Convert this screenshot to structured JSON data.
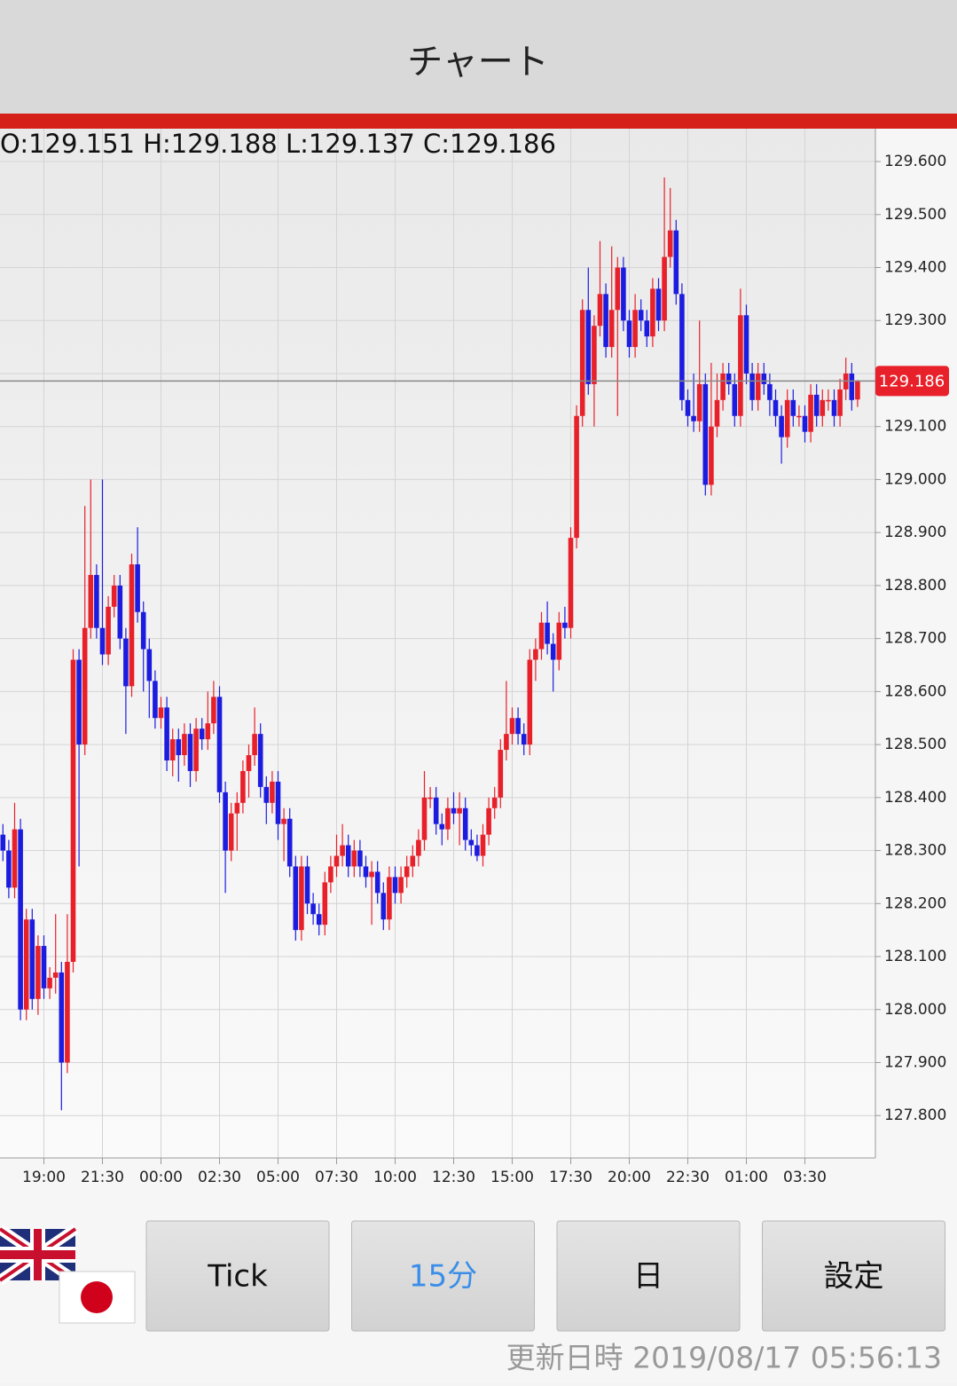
{
  "header": {
    "title": "チャート"
  },
  "chart_data": {
    "type": "candlestick",
    "ohlc_label": "O:129.151 H:129.188 L:129.137 C:129.186",
    "current_price": 129.186,
    "up_color": "#e8202a",
    "down_color": "#1c1ce0",
    "ylim": [
      127.72,
      129.657
    ],
    "yticks": [
      {
        "value": 127.8,
        "label": "127.800"
      },
      {
        "value": 127.9,
        "label": "127.900"
      },
      {
        "value": 128.0,
        "label": "128.000"
      },
      {
        "value": 128.1,
        "label": "128.100"
      },
      {
        "value": 128.2,
        "label": "128.200"
      },
      {
        "value": 128.3,
        "label": "128.300"
      },
      {
        "value": 128.4,
        "label": "128.400"
      },
      {
        "value": 128.5,
        "label": "128.500"
      },
      {
        "value": 128.6,
        "label": "128.600"
      },
      {
        "value": 128.7,
        "label": "128.700"
      },
      {
        "value": 128.8,
        "label": "128.800"
      },
      {
        "value": 128.9,
        "label": "128.900"
      },
      {
        "value": 129.0,
        "label": "129.000"
      },
      {
        "value": 129.1,
        "label": "129.100"
      },
      {
        "value": 129.2,
        "label": "129.200"
      },
      {
        "value": 129.3,
        "label": "129.300"
      },
      {
        "value": 129.4,
        "label": "129.400"
      },
      {
        "value": 129.5,
        "label": "129.500"
      },
      {
        "value": 129.6,
        "label": "129.600"
      }
    ],
    "grid": true,
    "categories": [
      null,
      null,
      null,
      null,
      null,
      null,
      null,
      "19:00",
      null,
      null,
      null,
      null,
      null,
      null,
      null,
      null,
      null,
      "21:30",
      null,
      null,
      null,
      null,
      null,
      null,
      null,
      null,
      null,
      "00:00",
      null,
      null,
      null,
      null,
      null,
      null,
      null,
      null,
      null,
      "02:30",
      null,
      null,
      null,
      null,
      null,
      null,
      null,
      null,
      null,
      "05:00",
      null,
      null,
      null,
      null,
      null,
      null,
      null,
      null,
      null,
      "07:30",
      null,
      null,
      null,
      null,
      null,
      null,
      null,
      null,
      null,
      "10:00",
      null,
      null,
      null,
      null,
      null,
      null,
      null,
      null,
      null,
      "12:30",
      null,
      null,
      null,
      null,
      null,
      null,
      null,
      null,
      null,
      "15:00",
      null,
      null,
      null,
      null,
      null,
      null,
      null,
      null,
      null,
      "17:30",
      null,
      null,
      null,
      null,
      null,
      null,
      null,
      null,
      null,
      "20:00",
      null,
      null,
      null,
      null,
      null,
      null,
      null,
      null,
      null,
      "22:30",
      null,
      null,
      null,
      null,
      null,
      null,
      null,
      null,
      null,
      "01:00",
      null,
      null,
      null,
      null,
      null,
      null,
      null,
      null,
      null,
      "03:30",
      null,
      null,
      null,
      null,
      null,
      null,
      null,
      null,
      null
    ],
    "open": [
      128.33,
      128.3,
      128.23,
      128.34,
      128.0,
      128.17,
      128.02,
      128.12,
      128.04,
      128.06,
      128.07,
      127.9,
      128.09,
      128.66,
      128.5,
      128.72,
      128.82,
      128.72,
      128.67,
      128.76,
      128.8,
      128.7,
      128.61,
      128.84,
      128.75,
      128.68,
      128.62,
      128.55,
      128.57,
      128.47,
      128.51,
      128.48,
      128.52,
      128.45,
      128.53,
      128.51,
      128.54,
      128.59,
      128.41,
      128.3,
      128.37,
      128.39,
      128.45,
      128.48,
      128.52,
      128.42,
      128.39,
      128.43,
      128.35,
      128.36,
      128.27,
      128.15,
      128.27,
      128.2,
      128.18,
      128.16,
      128.24,
      128.27,
      128.29,
      128.31,
      128.27,
      128.3,
      128.27,
      128.25,
      128.26,
      128.22,
      128.17,
      128.25,
      128.22,
      128.25,
      128.27,
      128.29,
      128.32,
      128.4,
      128.4,
      128.35,
      128.34,
      128.38,
      128.37,
      128.38,
      128.32,
      128.31,
      128.29,
      128.33,
      128.38,
      128.4,
      128.49,
      128.52,
      128.55,
      128.52,
      128.5,
      128.66,
      128.68,
      128.73,
      128.69,
      128.66,
      128.73,
      128.72,
      128.89,
      129.12,
      129.32,
      129.18,
      129.29,
      129.35,
      129.25,
      129.32,
      129.4,
      129.3,
      129.25,
      129.32,
      129.3,
      129.27,
      129.36,
      129.3,
      129.42,
      129.47,
      129.35,
      129.15,
      129.12,
      129.11,
      129.18,
      128.99,
      129.1,
      129.15,
      129.2,
      129.18,
      129.12,
      129.31,
      129.2,
      129.15,
      129.2,
      129.18,
      129.15,
      129.12,
      129.08,
      129.15,
      129.12,
      129.12,
      129.09,
      129.16,
      129.12,
      129.15,
      129.15,
      129.12,
      129.17,
      129.2,
      129.151
    ],
    "high": [
      128.35,
      128.32,
      128.39,
      128.36,
      128.19,
      128.19,
      128.14,
      128.14,
      128.08,
      128.18,
      128.09,
      128.18,
      128.68,
      128.68,
      128.95,
      129.0,
      128.84,
      129.0,
      128.78,
      128.82,
      128.82,
      128.72,
      128.86,
      128.91,
      128.77,
      128.7,
      128.64,
      128.59,
      128.59,
      128.53,
      128.53,
      128.54,
      128.54,
      128.55,
      128.55,
      128.6,
      128.62,
      128.61,
      128.43,
      128.39,
      128.41,
      128.47,
      128.5,
      128.57,
      128.54,
      128.44,
      128.45,
      128.45,
      128.38,
      128.38,
      128.29,
      128.29,
      128.29,
      128.22,
      128.2,
      128.26,
      128.29,
      128.33,
      128.35,
      128.33,
      128.32,
      128.32,
      128.29,
      128.28,
      128.28,
      128.24,
      128.27,
      128.27,
      128.27,
      128.29,
      128.31,
      128.34,
      128.45,
      128.42,
      128.42,
      128.37,
      128.4,
      128.41,
      128.41,
      128.4,
      128.34,
      128.33,
      128.35,
      128.4,
      128.42,
      128.51,
      128.62,
      128.57,
      128.57,
      128.54,
      128.68,
      128.7,
      128.75,
      128.77,
      128.71,
      128.75,
      128.76,
      128.91,
      129.14,
      129.34,
      129.4,
      129.31,
      129.45,
      129.37,
      129.44,
      129.42,
      129.42,
      129.32,
      129.35,
      129.34,
      129.32,
      129.38,
      129.38,
      129.57,
      129.55,
      129.49,
      129.37,
      129.17,
      129.2,
      129.3,
      129.2,
      129.22,
      129.2,
      129.22,
      129.22,
      129.2,
      129.36,
      129.33,
      129.22,
      129.22,
      129.22,
      129.2,
      129.17,
      129.14,
      129.17,
      129.17,
      129.14,
      129.14,
      129.18,
      129.18,
      129.17,
      129.17,
      129.17,
      129.19,
      129.23,
      129.22,
      129.188
    ],
    "low": [
      128.28,
      128.21,
      128.21,
      127.98,
      127.98,
      128.0,
      127.99,
      128.02,
      128.02,
      128.03,
      127.81,
      127.88,
      128.07,
      128.27,
      128.48,
      128.7,
      128.7,
      128.65,
      128.65,
      128.74,
      128.68,
      128.52,
      128.59,
      128.73,
      128.6,
      128.55,
      128.53,
      128.53,
      128.45,
      128.44,
      128.43,
      128.46,
      128.42,
      128.43,
      128.49,
      128.49,
      128.52,
      128.39,
      128.22,
      128.28,
      128.3,
      128.37,
      128.4,
      128.46,
      128.4,
      128.35,
      128.37,
      128.32,
      128.28,
      128.25,
      128.13,
      128.13,
      128.18,
      128.16,
      128.14,
      128.14,
      128.22,
      128.25,
      128.27,
      128.25,
      128.25,
      128.25,
      128.23,
      128.16,
      128.2,
      128.15,
      128.15,
      128.2,
      128.2,
      128.23,
      128.25,
      128.27,
      128.3,
      128.38,
      128.33,
      128.31,
      128.32,
      128.35,
      128.31,
      128.3,
      128.29,
      128.28,
      128.27,
      128.31,
      128.36,
      128.38,
      128.47,
      128.5,
      128.5,
      128.48,
      128.48,
      128.62,
      128.66,
      128.67,
      128.6,
      128.64,
      128.7,
      128.7,
      128.87,
      129.1,
      129.16,
      129.1,
      129.27,
      129.23,
      129.23,
      129.12,
      129.28,
      129.23,
      129.23,
      129.28,
      129.25,
      129.25,
      129.28,
      129.28,
      129.4,
      129.33,
      129.13,
      129.1,
      129.09,
      129.09,
      128.97,
      128.97,
      129.08,
      129.13,
      129.16,
      129.1,
      129.1,
      129.18,
      129.13,
      129.13,
      129.16,
      129.12,
      129.1,
      129.03,
      129.06,
      129.1,
      129.1,
      129.07,
      129.07,
      129.1,
      129.1,
      129.13,
      129.1,
      129.1,
      129.15,
      129.13,
      129.137
    ],
    "close": [
      128.3,
      128.23,
      128.34,
      128.0,
      128.17,
      128.02,
      128.12,
      128.04,
      128.06,
      128.07,
      127.9,
      128.09,
      128.66,
      128.5,
      128.72,
      128.82,
      128.72,
      128.67,
      128.76,
      128.8,
      128.7,
      128.61,
      128.84,
      128.75,
      128.68,
      128.62,
      128.55,
      128.57,
      128.47,
      128.51,
      128.48,
      128.52,
      128.45,
      128.53,
      128.51,
      128.54,
      128.59,
      128.41,
      128.3,
      128.37,
      128.39,
      128.45,
      128.48,
      128.52,
      128.42,
      128.39,
      128.43,
      128.35,
      128.36,
      128.27,
      128.15,
      128.27,
      128.2,
      128.18,
      128.16,
      128.24,
      128.27,
      128.29,
      128.31,
      128.27,
      128.3,
      128.27,
      128.25,
      128.26,
      128.22,
      128.17,
      128.25,
      128.22,
      128.25,
      128.27,
      128.29,
      128.32,
      128.4,
      128.4,
      128.35,
      128.34,
      128.38,
      128.37,
      128.38,
      128.32,
      128.31,
      128.29,
      128.33,
      128.38,
      128.4,
      128.49,
      128.52,
      128.55,
      128.52,
      128.5,
      128.66,
      128.68,
      128.73,
      128.69,
      128.66,
      128.73,
      128.72,
      128.89,
      129.12,
      129.32,
      129.18,
      129.29,
      129.35,
      129.25,
      129.32,
      129.4,
      129.3,
      129.25,
      129.32,
      129.3,
      129.27,
      129.36,
      129.3,
      129.42,
      129.47,
      129.35,
      129.15,
      129.12,
      129.11,
      129.18,
      128.99,
      129.1,
      129.15,
      129.2,
      129.18,
      129.12,
      129.31,
      129.2,
      129.15,
      129.2,
      129.18,
      129.15,
      129.12,
      129.08,
      129.15,
      129.12,
      129.12,
      129.09,
      129.16,
      129.12,
      129.15,
      129.15,
      129.12,
      129.17,
      129.2,
      129.15,
      129.186
    ]
  },
  "buttons": [
    "Tick",
    "15分",
    "日",
    "設定"
  ],
  "footer": {
    "updated": "更新日時 2019/08/17 05:56:13"
  }
}
